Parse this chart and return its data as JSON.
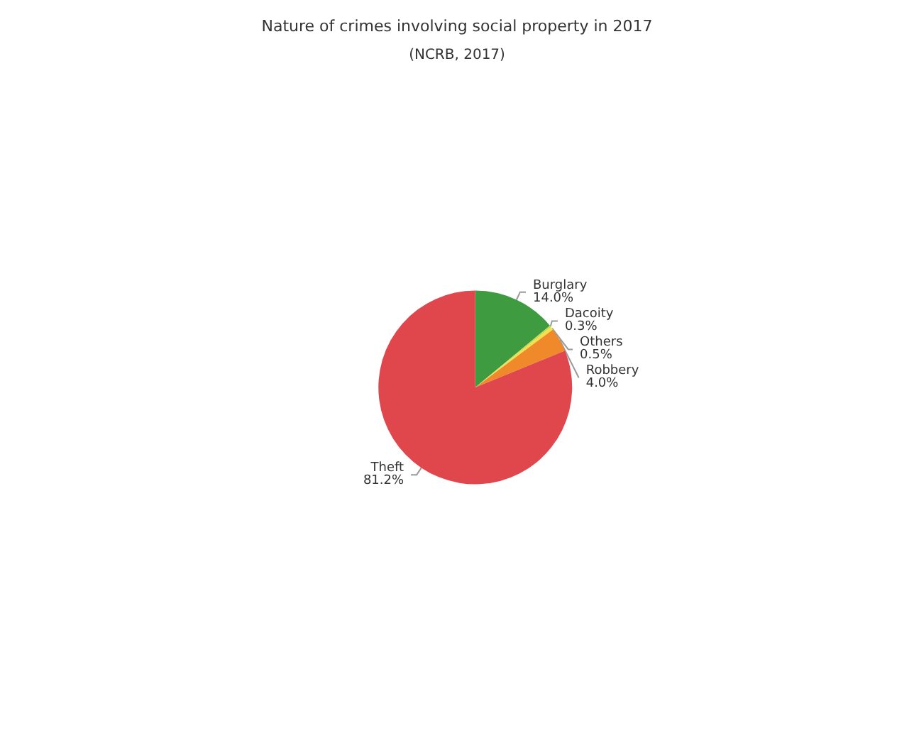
{
  "chart_data": {
    "type": "pie",
    "title": "Nature of crimes involving social property in 2017",
    "subtitle": "(NCRB, 2017)",
    "categories": [
      "Burglary",
      "Dacoity",
      "Others",
      "Robbery",
      "Theft"
    ],
    "values": [
      14.0,
      0.3,
      0.5,
      4.0,
      81.2
    ],
    "value_labels": [
      "14.0%",
      "0.3%",
      "0.5%",
      "4.0%",
      "81.2%"
    ],
    "colors": [
      "#3f9b3f",
      "#c9d94a",
      "#f5e04a",
      "#f0892a",
      "#e0474c"
    ]
  }
}
